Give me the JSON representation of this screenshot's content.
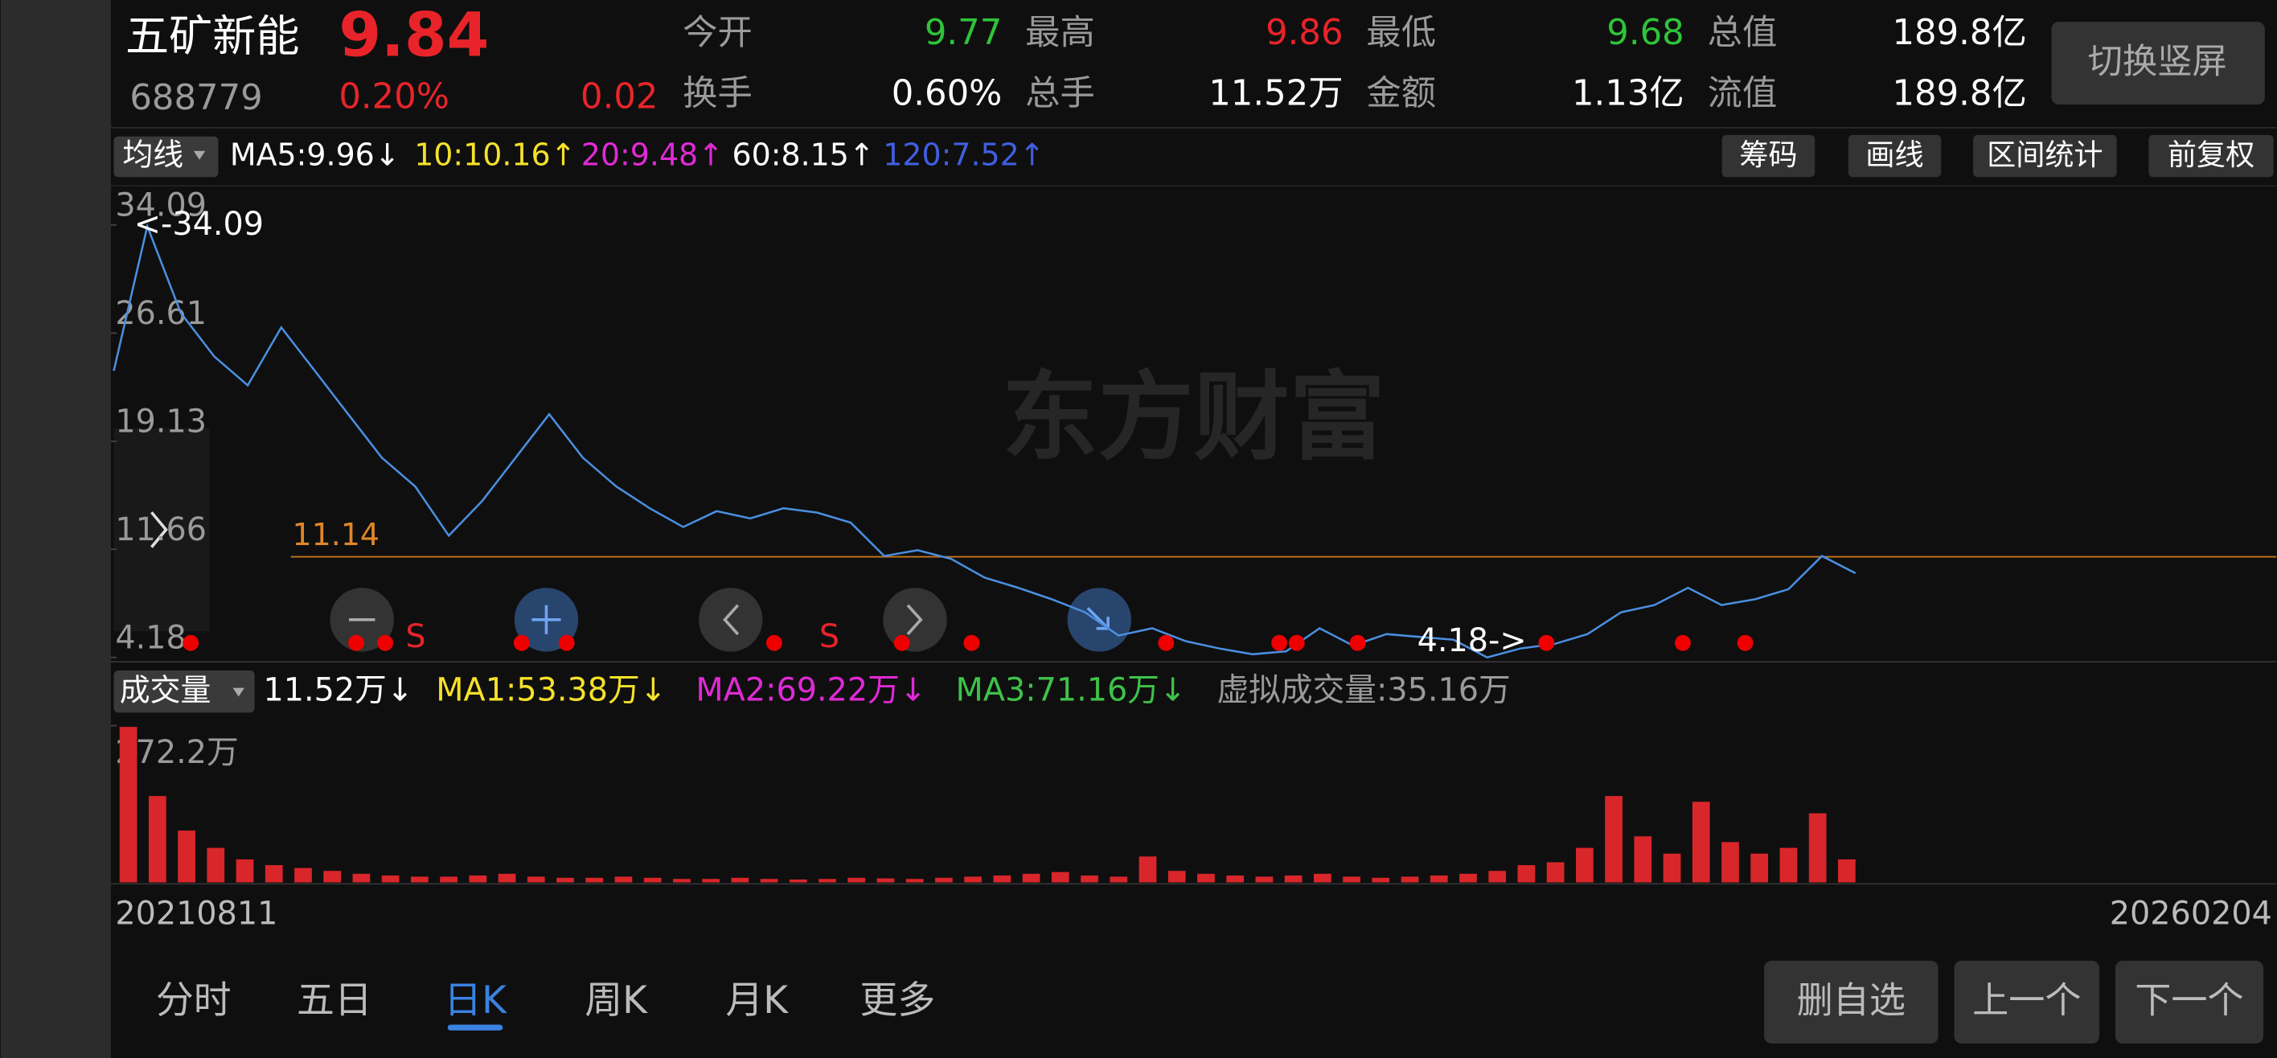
{
  "header": {
    "name": "五矿新能",
    "price": "9.84",
    "code": "688779",
    "change_pct": "0.20%",
    "change": "0.02",
    "stats": [
      {
        "label": "今开",
        "value": "9.77",
        "color": "#2fc43a"
      },
      {
        "label": "最高",
        "value": "9.86",
        "color": "#e8242a"
      },
      {
        "label": "最低",
        "value": "9.68",
        "color": "#2fc43a"
      },
      {
        "label": "总值",
        "value": "189.8亿",
        "color": "#ffffff"
      },
      {
        "label": "换手",
        "value": "0.60%",
        "color": "#ffffff"
      },
      {
        "label": "总手",
        "value": "11.52万",
        "color": "#ffffff"
      },
      {
        "label": "金额",
        "value": "1.13亿",
        "color": "#ffffff"
      },
      {
        "label": "流值",
        "value": "189.8亿",
        "color": "#ffffff"
      }
    ],
    "orientation_button": "切换竖屏"
  },
  "ma_bar": {
    "selector": "均线",
    "items": [
      {
        "text": "MA5:9.96↓",
        "color": "#ffffff"
      },
      {
        "text": "10:10.16↑",
        "color": "#f5e12a"
      },
      {
        "text": "20:9.48↑",
        "color": "#e02ad6"
      },
      {
        "text": "60:8.15↑",
        "color": "#ffffff"
      },
      {
        "text": "120:7.52↑",
        "color": "#3f5fe0"
      }
    ],
    "buttons": [
      "筹码",
      "画线",
      "区间统计",
      "前复权"
    ]
  },
  "price_chart": {
    "ylim": [
      4.18,
      34.09
    ],
    "yticks": [
      34.09,
      26.61,
      19.13,
      11.66,
      4.18
    ],
    "high_label": "<-34.09",
    "low_label": "4.18->",
    "ref_line": 11.14,
    "watermark": "东方财富",
    "signal": "S",
    "color": "#4a8fe0",
    "values": [
      24,
      34,
      28,
      25,
      23,
      27,
      24,
      21,
      18,
      16,
      12.6,
      15,
      18,
      21,
      18,
      16,
      14.5,
      13.2,
      14.3,
      13.8,
      14.5,
      14.2,
      13.5,
      11.2,
      11.6,
      11,
      9.7,
      9,
      8.2,
      7.3,
      5.7,
      6.2,
      5.3,
      4.8,
      4.4,
      4.6,
      6.2,
      5,
      5.8,
      5.6,
      5.4,
      4.18,
      4.8,
      5.1,
      5.8,
      7.3,
      7.8,
      9,
      7.8,
      8.2,
      8.9,
      11.2,
      10
    ]
  },
  "volume_chart": {
    "selector": "成交量",
    "items": [
      {
        "text": "11.52万↓",
        "color": "#ffffff"
      },
      {
        "text": "MA1:53.38万↓",
        "color": "#f5e12a"
      },
      {
        "text": "MA2:69.22万↓",
        "color": "#e02ad6"
      },
      {
        "text": "MA3:71.16万↓",
        "color": "#3ec24a"
      },
      {
        "text": "虚拟成交量:35.16万",
        "color": "#9a9a9a"
      }
    ],
    "ylim": [
      0,
      272.2
    ],
    "ytick": {
      "value": 272.2,
      "label": "272.2万"
    },
    "color": "#d8262b",
    "values": [
      270,
      150,
      90,
      60,
      40,
      30,
      25,
      20,
      15,
      12,
      10,
      10,
      12,
      15,
      10,
      8,
      8,
      10,
      8,
      6,
      6,
      8,
      6,
      5,
      6,
      8,
      7,
      6,
      8,
      10,
      12,
      15,
      18,
      12,
      10,
      45,
      20,
      15,
      12,
      10,
      12,
      15,
      10,
      8,
      10,
      12,
      15,
      20,
      30,
      35,
      60,
      150,
      80,
      50,
      140,
      70,
      50,
      60,
      120,
      40
    ]
  },
  "dates": {
    "start": "20210811",
    "end": "20260204"
  },
  "tabs": [
    "分时",
    "五日",
    "日K",
    "周K",
    "月K",
    "更多"
  ],
  "active_tab": 2,
  "actions": [
    "删自选",
    "上一个",
    "下一个"
  ]
}
